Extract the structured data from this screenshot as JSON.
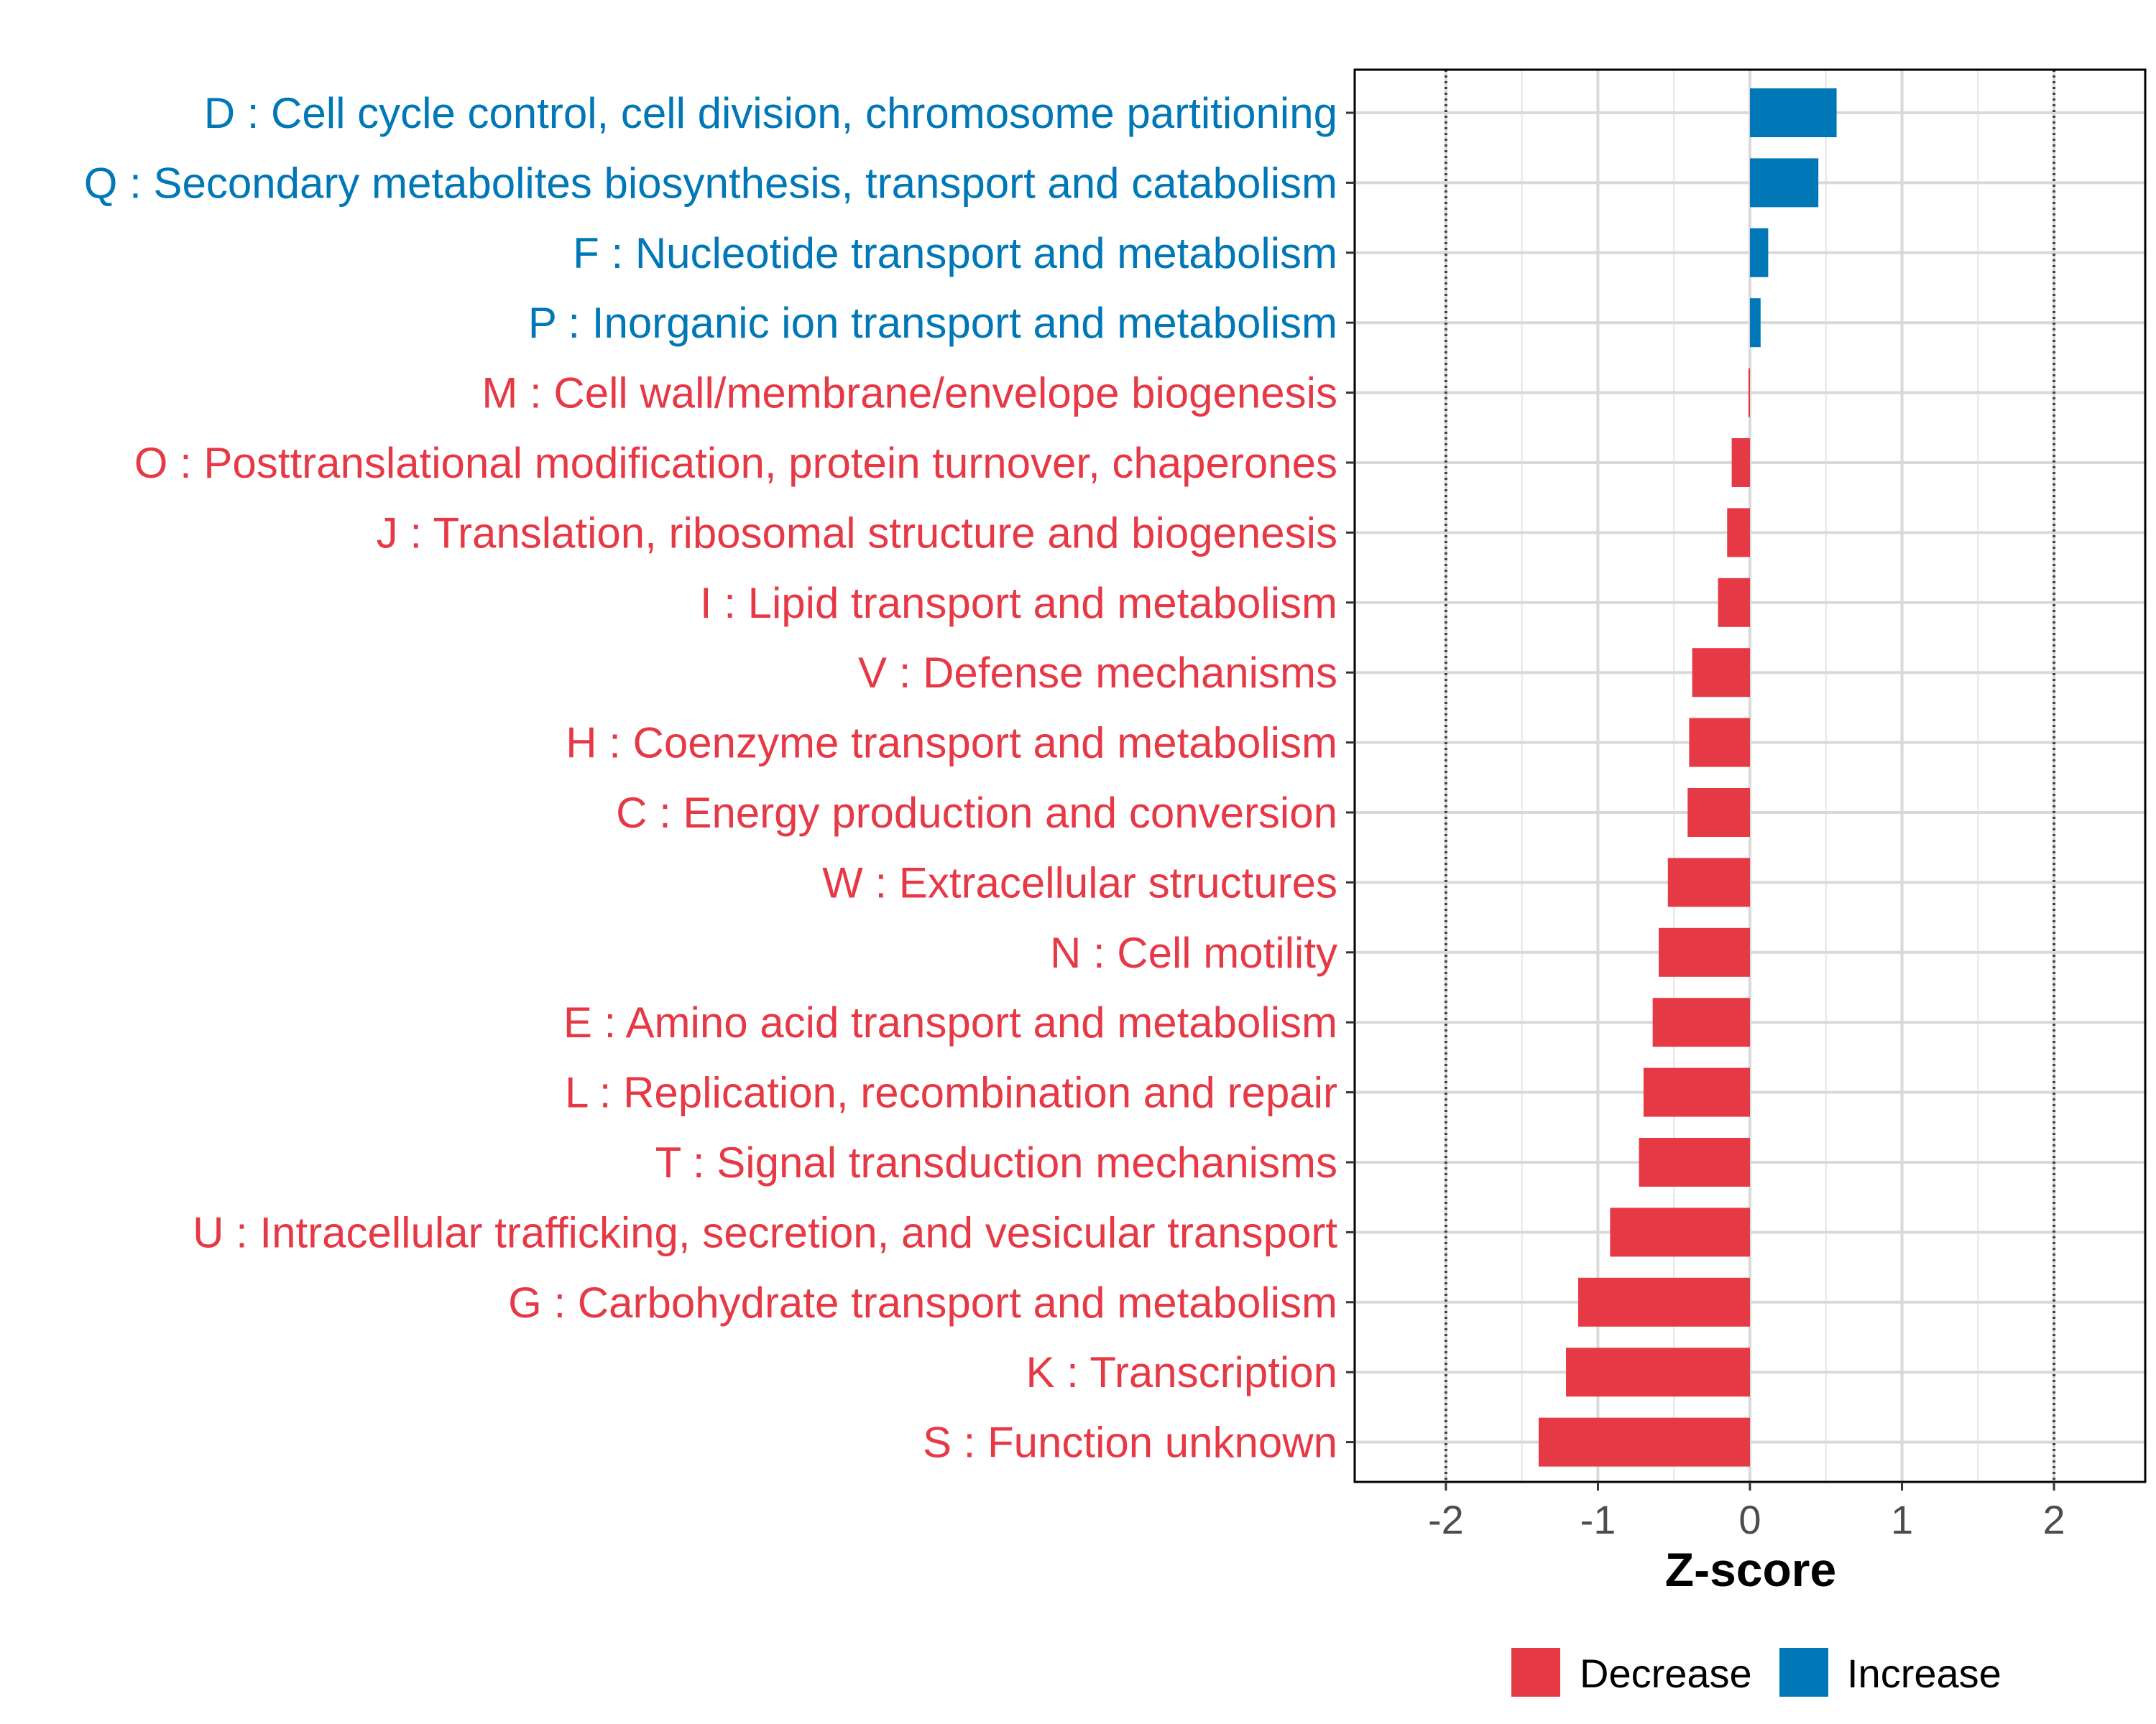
{
  "chart_data": {
    "type": "bar",
    "orientation": "horizontal",
    "xlabel": "Z-score",
    "xlim": [
      -2.6,
      2.6
    ],
    "xticks": [
      -2,
      -1,
      0,
      1,
      2
    ],
    "xtick_labels": [
      "-2",
      "-1",
      "0",
      "1",
      "2"
    ],
    "reference_lines": [
      -2,
      2
    ],
    "grid": true,
    "legend": {
      "position": "bottom",
      "entries": [
        {
          "label": "Decrease",
          "color": "#e63946"
        },
        {
          "label": "Increase",
          "color": "#0077b6"
        }
      ]
    },
    "categories": [
      "D : Cell cycle control, cell division, chromosome partitioning",
      "Q : Secondary metabolites biosynthesis, transport and catabolism",
      "F : Nucleotide transport and metabolism",
      "P : Inorganic ion transport and metabolism",
      "M : Cell wall/membrane/envelope biogenesis",
      "O : Posttranslational modification, protein turnover, chaperones",
      "J : Translation, ribosomal structure and biogenesis",
      "I : Lipid transport and metabolism",
      "V : Defense mechanisms",
      "H : Coenzyme transport and metabolism",
      "C : Energy production and conversion",
      "W : Extracellular structures",
      "N : Cell motility",
      "E : Amino acid transport and metabolism",
      "L : Replication, recombination and repair",
      "T : Signal transduction mechanisms",
      "U : Intracellular trafficking, secretion, and vesicular transport",
      "G : Carbohydrate transport and metabolism",
      "K : Transcription",
      "S : Function unknown"
    ],
    "values": [
      0.57,
      0.45,
      0.12,
      0.07,
      -0.01,
      -0.12,
      -0.15,
      -0.21,
      -0.38,
      -0.4,
      -0.41,
      -0.54,
      -0.6,
      -0.64,
      -0.7,
      -0.73,
      -0.92,
      -1.13,
      -1.21,
      -1.39
    ],
    "groups": [
      "Increase",
      "Increase",
      "Increase",
      "Increase",
      "Decrease",
      "Decrease",
      "Decrease",
      "Decrease",
      "Decrease",
      "Decrease",
      "Decrease",
      "Decrease",
      "Decrease",
      "Decrease",
      "Decrease",
      "Decrease",
      "Decrease",
      "Decrease",
      "Decrease",
      "Decrease"
    ]
  }
}
